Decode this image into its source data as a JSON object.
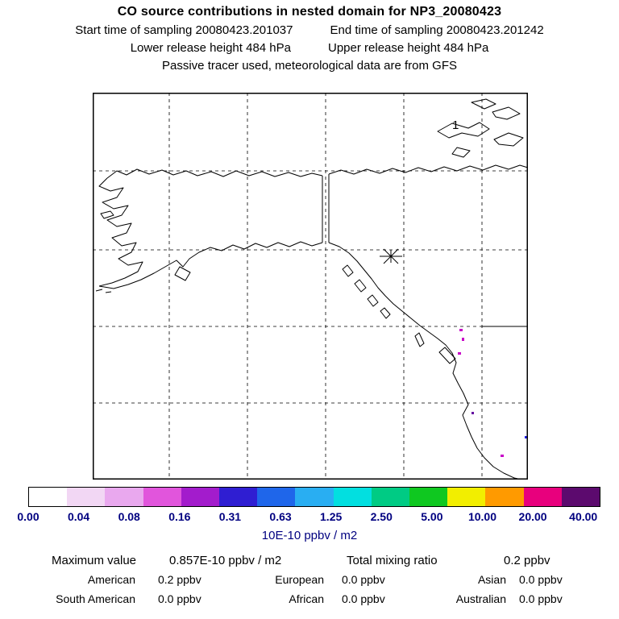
{
  "header": {
    "title": "CO  source contributions in nested domain for NP3_20080423",
    "start_time": "Start time of sampling 20080423.201037",
    "end_time": "End time of sampling 20080423.201242",
    "lower_release": "Lower release height  484 hPa",
    "upper_release": "Upper release height  484 hPa",
    "tracer_line": "Passive tracer used, meteorological data are from GFS"
  },
  "map": {
    "domain_label": "1",
    "marker": "star-sampling-location",
    "speck_colors": {
      "magenta": "#c800c8",
      "blue": "#1e1ee6",
      "violet": "#6400a0"
    }
  },
  "colorbar": {
    "segments": [
      "#ffffff",
      "#f2d7f4",
      "#e9a8ee",
      "#e155dc",
      "#a31ccc",
      "#2f1ed2",
      "#1f66ea",
      "#29aef2",
      "#02dfe0",
      "#00cb84",
      "#0fc820",
      "#f2ee00",
      "#ff9a00",
      "#e8007d",
      "#5c0a6e"
    ],
    "ticks": [
      "0.00",
      "0.04",
      "0.08",
      "0.16",
      "0.31",
      "0.63",
      "1.25",
      "2.50",
      "5.00",
      "10.00",
      "20.00",
      "40.00"
    ],
    "tick_color": "#000080",
    "units": "10E-10 ppbv / m2"
  },
  "stats": {
    "max_label": "Maximum value",
    "max_value": "0.857E-10 ppbv / m2",
    "mix_label": "Total mixing ratio",
    "mix_value": "0.2 ppbv",
    "regions": [
      [
        {
          "label": "American",
          "value": "0.2 ppbv"
        },
        {
          "label": "European",
          "value": "0.0 ppbv"
        },
        {
          "label": "Asian",
          "value": "0.0 ppbv"
        }
      ],
      [
        {
          "label": "South American",
          "value": "0.0 ppbv"
        },
        {
          "label": "African",
          "value": "0.0 ppbv"
        },
        {
          "label": "Australian",
          "value": "0.0 ppbv"
        }
      ]
    ]
  }
}
